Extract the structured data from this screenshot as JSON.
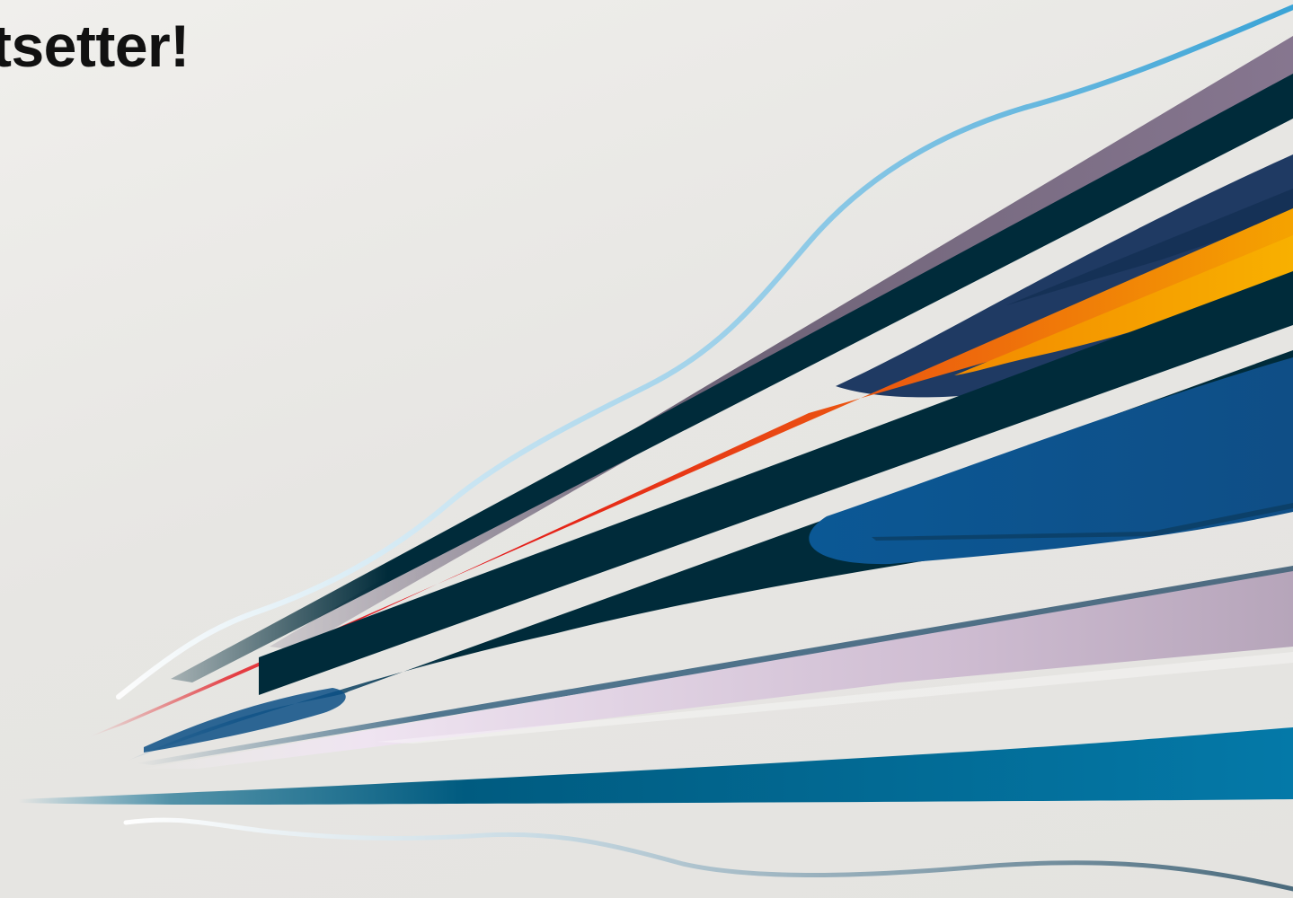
{
  "slide": {
    "headline": "ortsetter!"
  },
  "colors": {
    "background": "#e6e5e2",
    "headline": "#111111",
    "navy": "#002b3a",
    "blue": "#0b5590",
    "teal": "#0a78a4",
    "sky": "#4aa8d4",
    "purple": "#7f7089",
    "lilac": "#cdbbd0",
    "orange": "#f26a10",
    "amber": "#f5a300",
    "red": "#e3141b"
  }
}
